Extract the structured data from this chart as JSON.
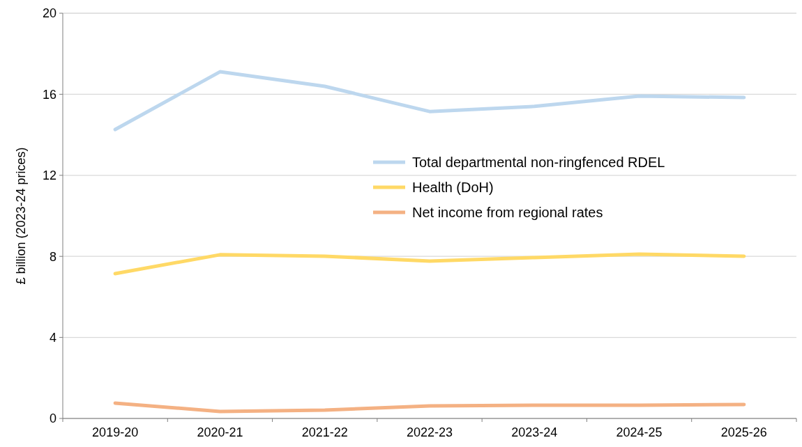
{
  "chart_data": {
    "type": "line",
    "ylabel": "£ billion (2023-24 prices)",
    "categories": [
      "2019-20",
      "2020-21",
      "2021-22",
      "2022-23",
      "2023-24",
      "2024-25",
      "2025-26"
    ],
    "series": [
      {
        "name": "Total departmental non-ringfenced RDEL",
        "color": "#bdd7ee",
        "values": [
          14.26,
          17.11,
          16.39,
          15.15,
          15.4,
          15.91,
          15.84
        ]
      },
      {
        "name": "Health (DoH)",
        "color": "#ffd966",
        "values": [
          7.15,
          8.08,
          8.01,
          7.77,
          7.94,
          8.11,
          8.01
        ]
      },
      {
        "name": "Net income from regional rates",
        "color": "#f4b183",
        "values": [
          0.76,
          0.34,
          0.41,
          0.62,
          0.65,
          0.65,
          0.69
        ]
      }
    ],
    "ylim": [
      0,
      20
    ],
    "yticks": [
      0,
      4,
      8,
      12,
      16,
      20
    ],
    "grid": "y",
    "legend": "right",
    "marker": "none",
    "line_style": "solid"
  }
}
